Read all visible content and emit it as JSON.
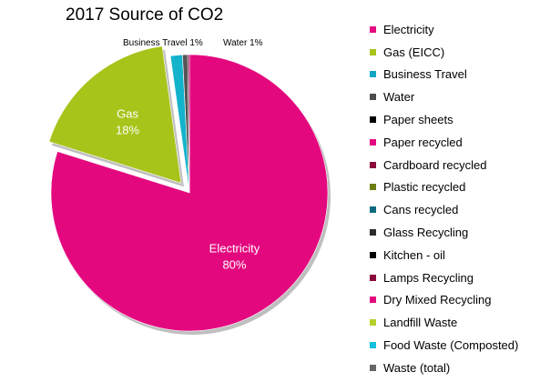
{
  "chart_data": {
    "type": "pie",
    "title": "2017 Source of CO2",
    "slices": [
      {
        "name": "Electricity",
        "value": 80,
        "color": "#e4087f",
        "label": "Electricity",
        "pct_label": "80%",
        "explode": 0
      },
      {
        "name": "Gas (EICC)",
        "value": 18,
        "color": "#a7c41a",
        "label": "Gas",
        "pct_label": "18%",
        "explode": 1
      },
      {
        "name": "Business Travel",
        "value": 1.4,
        "color": "#14b3cc",
        "label": "Business Travel 1%",
        "pct_label": "",
        "explode": 0
      },
      {
        "name": "Water",
        "value": 0.6,
        "color": "#555555",
        "label": "Water 1%",
        "pct_label": "",
        "explode": 0
      },
      {
        "name": "Cardboard recycled",
        "value": 0.2,
        "color": "#8a0a3e",
        "label": "",
        "pct_label": "",
        "explode": 0
      }
    ],
    "legend_position": "right",
    "legend": [
      {
        "label": "Electricity",
        "color": "#e4087f"
      },
      {
        "label": "Gas (EICC)",
        "color": "#a7c41a"
      },
      {
        "label": "Business Travel",
        "color": "#14a7c4"
      },
      {
        "label": "Water",
        "color": "#4d4d4d"
      },
      {
        "label": "Paper sheets",
        "color": "#000000"
      },
      {
        "label": "Paper recycled",
        "color": "#e4087f"
      },
      {
        "label": "Cardboard recycled",
        "color": "#8a0a3e"
      },
      {
        "label": "Plastic recycled",
        "color": "#6b7f12"
      },
      {
        "label": "Cans recycled",
        "color": "#0d6b7d"
      },
      {
        "label": "Glass Recycling",
        "color": "#2b2b2b"
      },
      {
        "label": "Kitchen - oil",
        "color": "#000000"
      },
      {
        "label": "Lamps Recycling",
        "color": "#8a0a3e"
      },
      {
        "label": "Dry Mixed Recycling",
        "color": "#e4087f"
      },
      {
        "label": "Landfill Waste",
        "color": "#b5d02c"
      },
      {
        "label": "Food Waste (Composted)",
        "color": "#14c0de"
      },
      {
        "label": "Waste (total)",
        "color": "#666666"
      }
    ]
  }
}
